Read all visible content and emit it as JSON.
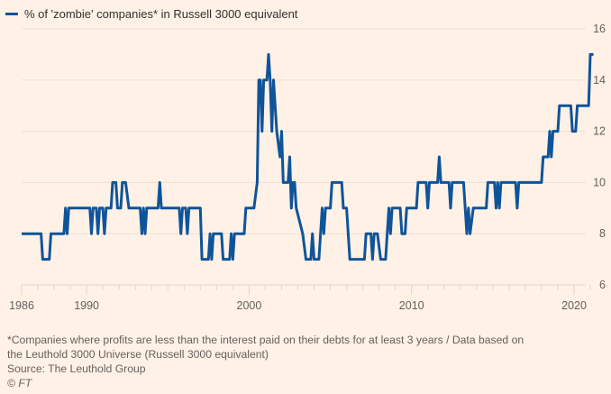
{
  "chart_data": {
    "type": "line",
    "title": "",
    "legend": [
      {
        "name": "% of 'zombie' companies* in Russell 3000 equivalent",
        "color": "#0f5499"
      }
    ],
    "legend_placement": "top-left",
    "xlabel": "",
    "ylabel": "",
    "xlim": [
      1986,
      2021.3
    ],
    "ylim": [
      6,
      16
    ],
    "x_ticks": [
      1986,
      1990,
      2000,
      2010,
      2020
    ],
    "y_ticks": [
      6,
      8,
      10,
      12,
      14,
      16
    ],
    "y_axis_side": "right",
    "grid": true,
    "series": [
      {
        "name": "% of 'zombie' companies* in Russell 3000 equivalent",
        "color": "#0f5499",
        "points": [
          [
            1986.0,
            8
          ],
          [
            1987.2,
            8
          ],
          [
            1987.3,
            7
          ],
          [
            1987.7,
            7
          ],
          [
            1987.8,
            8
          ],
          [
            1988.6,
            8
          ],
          [
            1988.7,
            9
          ],
          [
            1988.8,
            8
          ],
          [
            1988.9,
            9
          ],
          [
            1990.2,
            9
          ],
          [
            1990.3,
            8
          ],
          [
            1990.4,
            9
          ],
          [
            1990.6,
            9
          ],
          [
            1990.7,
            8
          ],
          [
            1990.8,
            9
          ],
          [
            1991.0,
            9
          ],
          [
            1991.1,
            8
          ],
          [
            1991.2,
            9
          ],
          [
            1991.5,
            9
          ],
          [
            1991.6,
            10
          ],
          [
            1991.8,
            10
          ],
          [
            1991.9,
            9
          ],
          [
            1992.1,
            9
          ],
          [
            1992.2,
            10
          ],
          [
            1992.4,
            10
          ],
          [
            1992.6,
            9
          ],
          [
            1993.3,
            9
          ],
          [
            1993.4,
            8
          ],
          [
            1993.5,
            9
          ],
          [
            1993.6,
            8
          ],
          [
            1993.7,
            9
          ],
          [
            1994.4,
            9
          ],
          [
            1994.5,
            10
          ],
          [
            1994.6,
            9
          ],
          [
            1995.7,
            9
          ],
          [
            1995.8,
            8
          ],
          [
            1995.9,
            9
          ],
          [
            1996.1,
            9
          ],
          [
            1996.2,
            8
          ],
          [
            1996.3,
            9
          ],
          [
            1997.0,
            9
          ],
          [
            1997.1,
            7
          ],
          [
            1997.5,
            7
          ],
          [
            1997.6,
            8
          ],
          [
            1997.7,
            7
          ],
          [
            1997.8,
            8
          ],
          [
            1998.3,
            8
          ],
          [
            1998.4,
            7
          ],
          [
            1998.8,
            7
          ],
          [
            1998.9,
            8
          ],
          [
            1999.0,
            7
          ],
          [
            1999.1,
            8
          ],
          [
            1999.7,
            8
          ],
          [
            1999.8,
            9
          ],
          [
            2000.3,
            9
          ],
          [
            2000.5,
            10
          ],
          [
            2000.6,
            14
          ],
          [
            2000.7,
            14
          ],
          [
            2000.8,
            12
          ],
          [
            2000.9,
            14
          ],
          [
            2001.1,
            14
          ],
          [
            2001.2,
            15
          ],
          [
            2001.3,
            14
          ],
          [
            2001.4,
            12
          ],
          [
            2001.5,
            14
          ],
          [
            2001.7,
            12
          ],
          [
            2001.9,
            11
          ],
          [
            2002.0,
            12
          ],
          [
            2002.1,
            10
          ],
          [
            2002.4,
            10
          ],
          [
            2002.5,
            11
          ],
          [
            2002.6,
            9
          ],
          [
            2002.7,
            10
          ],
          [
            2002.8,
            10
          ],
          [
            2002.9,
            9
          ],
          [
            2003.3,
            8
          ],
          [
            2003.5,
            7
          ],
          [
            2003.8,
            7
          ],
          [
            2003.9,
            8
          ],
          [
            2004.0,
            7
          ],
          [
            2004.3,
            7
          ],
          [
            2004.5,
            9
          ],
          [
            2004.6,
            8
          ],
          [
            2004.7,
            9
          ],
          [
            2005.0,
            9
          ],
          [
            2005.1,
            10
          ],
          [
            2005.7,
            10
          ],
          [
            2005.8,
            9
          ],
          [
            2006.0,
            9
          ],
          [
            2006.2,
            7
          ],
          [
            2007.1,
            7
          ],
          [
            2007.2,
            8
          ],
          [
            2007.5,
            8
          ],
          [
            2007.6,
            7
          ],
          [
            2007.7,
            8
          ],
          [
            2007.9,
            8
          ],
          [
            2008.1,
            7
          ],
          [
            2008.4,
            7
          ],
          [
            2008.5,
            8
          ],
          [
            2008.6,
            9
          ],
          [
            2008.7,
            8
          ],
          [
            2008.8,
            9
          ],
          [
            2009.3,
            9
          ],
          [
            2009.4,
            8
          ],
          [
            2009.6,
            8
          ],
          [
            2009.7,
            9
          ],
          [
            2010.3,
            9
          ],
          [
            2010.4,
            10
          ],
          [
            2010.9,
            10
          ],
          [
            2011.0,
            9
          ],
          [
            2011.1,
            10
          ],
          [
            2011.6,
            10
          ],
          [
            2011.7,
            11
          ],
          [
            2011.8,
            10
          ],
          [
            2012.3,
            10
          ],
          [
            2012.4,
            9
          ],
          [
            2012.5,
            10
          ],
          [
            2013.2,
            10
          ],
          [
            2013.4,
            8
          ],
          [
            2013.5,
            9
          ],
          [
            2013.6,
            8
          ],
          [
            2013.8,
            9
          ],
          [
            2014.6,
            9
          ],
          [
            2014.7,
            10
          ],
          [
            2015.1,
            10
          ],
          [
            2015.2,
            9
          ],
          [
            2015.3,
            10
          ],
          [
            2015.4,
            9
          ],
          [
            2015.5,
            10
          ],
          [
            2016.4,
            10
          ],
          [
            2016.5,
            9
          ],
          [
            2016.6,
            10
          ],
          [
            2018.0,
            10
          ],
          [
            2018.1,
            11
          ],
          [
            2018.4,
            11
          ],
          [
            2018.5,
            12
          ],
          [
            2018.6,
            11
          ],
          [
            2018.7,
            12
          ],
          [
            2019.0,
            12
          ],
          [
            2019.1,
            13
          ],
          [
            2019.8,
            13
          ],
          [
            2019.9,
            12
          ],
          [
            2020.1,
            12
          ],
          [
            2020.2,
            13
          ],
          [
            2020.9,
            13
          ],
          [
            2021.0,
            15
          ],
          [
            2021.2,
            15
          ]
        ]
      }
    ]
  },
  "legend": {
    "label": "% of 'zombie' companies* in Russell 3000 equivalent"
  },
  "notes": {
    "footnote_line1": "*Companies where profits are less than the interest paid on their debts for at least 3 years / Data based on",
    "footnote_line2": "the Leuthold 3000 Universe (Russell 3000 equivalent)",
    "source": "Source: The Leuthold Group",
    "credit": "© FT"
  }
}
